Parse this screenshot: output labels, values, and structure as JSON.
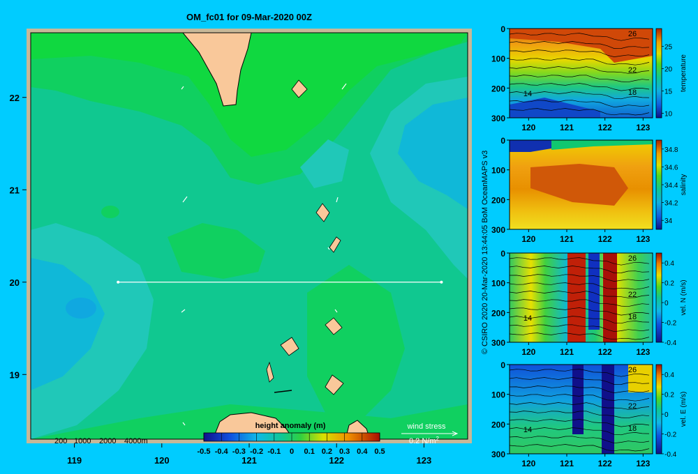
{
  "title": "OM_fc01 for 09-Mar-2020 00Z",
  "credit": "© CSIRO 2020   20-Mar-2020 13:44:05 BoM OceanMAPS v3",
  "map": {
    "x_ticks": [
      "119",
      "120",
      "121",
      "122",
      "123"
    ],
    "y_ticks": [
      "22",
      "21",
      "20",
      "19"
    ],
    "x_range": [
      118.5,
      123.5
    ],
    "y_range": [
      18.3,
      22.7
    ],
    "depth_legend": [
      "200",
      "1000",
      "2000",
      "4000m"
    ],
    "colorbar_label": "height anomaly (m)",
    "colorbar_ticks": [
      "-0.5",
      "-0.4",
      "-0.3",
      "-0.2",
      "-0.1",
      "0",
      "0.1",
      "0.2",
      "0.3",
      "0.4",
      "0.5"
    ],
    "wind_label": "wind stress",
    "wind_scale": "0.2 N/m",
    "wind_scale_sup": "2",
    "section": {
      "lon_start": 119.5,
      "lon_end": 123.2,
      "lat": 20.0
    },
    "colors": {
      "land": "#f9c89a",
      "frame": "#c8b898",
      "line": "#ffffff"
    }
  },
  "chart_data": [
    {
      "type": "heatmap",
      "title": "OM_fc01 for 09-Mar-2020 00Z",
      "xlabel": "",
      "ylabel": "",
      "variable": "height anomaly (m)",
      "xlim": [
        118.5,
        123.5
      ],
      "ylim": [
        18.3,
        22.7
      ],
      "clim": [
        -0.5,
        0.5
      ],
      "note_values": {
        "west_low": -0.05,
        "central": 0.0,
        "north": 0.1,
        "east_low": -0.1
      }
    },
    {
      "type": "heatmap",
      "variable": "temperature",
      "x_ticks": [
        "120",
        "121",
        "122",
        "123"
      ],
      "y_ticks": [
        "0",
        "100",
        "200",
        "300"
      ],
      "xlim": [
        119.5,
        123.25
      ],
      "ylim": [
        300,
        0
      ],
      "colorbar_ticks": [
        "25",
        "20",
        "15",
        "10"
      ],
      "clim": [
        9,
        29
      ],
      "contour_labels": [
        "26",
        "22",
        "18",
        "14"
      ]
    },
    {
      "type": "heatmap",
      "variable": "salinity",
      "x_ticks": [
        "120",
        "121",
        "122",
        "123"
      ],
      "y_ticks": [
        "0",
        "100",
        "200",
        "300"
      ],
      "xlim": [
        119.5,
        123.25
      ],
      "ylim": [
        300,
        0
      ],
      "colorbar_ticks": [
        "34.8",
        "34.6",
        "34.4",
        "34.2",
        "34"
      ],
      "clim": [
        33.9,
        34.9
      ]
    },
    {
      "type": "heatmap",
      "variable": "vel. N (m/s)",
      "x_ticks": [
        "120",
        "121",
        "122",
        "123"
      ],
      "y_ticks": [
        "0",
        "100",
        "200",
        "300"
      ],
      "xlim": [
        119.5,
        123.25
      ],
      "ylim": [
        300,
        0
      ],
      "colorbar_ticks": [
        "0.4",
        "0.2",
        "0",
        "-0.2",
        "-0.4"
      ],
      "clim": [
        -0.4,
        0.5
      ],
      "contour_labels": [
        "26",
        "22",
        "18",
        "14"
      ]
    },
    {
      "type": "heatmap",
      "variable": "vel. E (m/s)",
      "x_ticks": [
        "120",
        "121",
        "122",
        "123"
      ],
      "y_ticks": [
        "0",
        "100",
        "200",
        "300"
      ],
      "xlim": [
        119.5,
        123.25
      ],
      "ylim": [
        300,
        0
      ],
      "colorbar_ticks": [
        "0.4",
        "0.2",
        "0",
        "-0.2",
        "-0.4"
      ],
      "clim": [
        -0.4,
        0.5
      ],
      "contour_labels": [
        "26",
        "22",
        "18",
        "14"
      ]
    }
  ]
}
